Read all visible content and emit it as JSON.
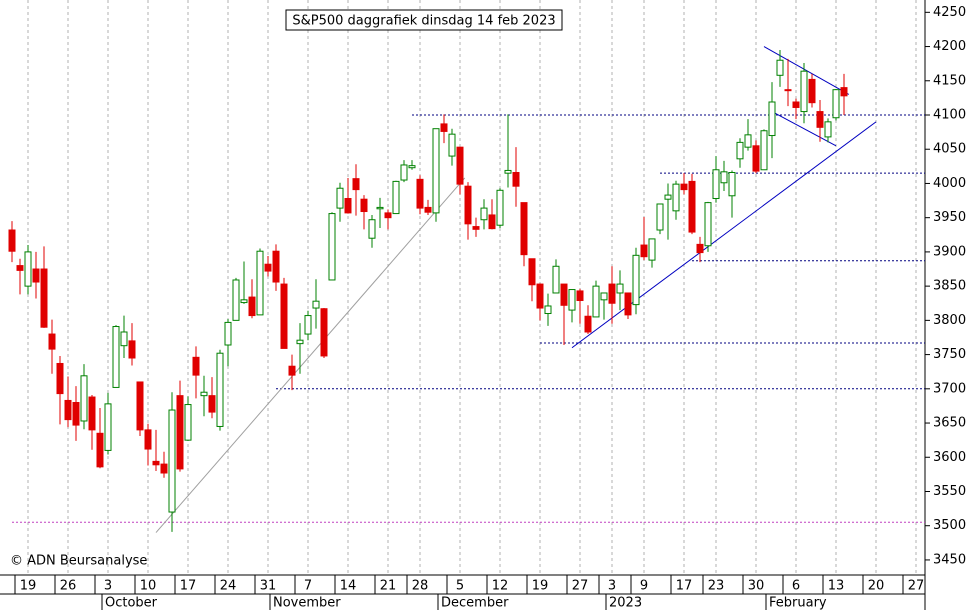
{
  "chart_data": {
    "type": "candlestick",
    "title": "S&P500 daggrafiek dinsdag 14 feb 2023",
    "copyright": "© ADN Beursanalyse",
    "categories": [
      null,
      null,
      "19",
      null,
      null,
      null,
      null,
      "26",
      null,
      null,
      null,
      null,
      "3",
      null,
      null,
      null,
      null,
      "10",
      null,
      null,
      null,
      null,
      "17",
      null,
      null,
      null,
      null,
      "24",
      null,
      null,
      null,
      null,
      "31",
      null,
      null,
      null,
      null,
      "7",
      null,
      null,
      null,
      null,
      "14",
      null,
      null,
      null,
      null,
      "21",
      null,
      null,
      null,
      "28",
      null,
      null,
      null,
      null,
      "5",
      null,
      null,
      null,
      null,
      "12",
      null,
      null,
      null,
      null,
      "19",
      null,
      null,
      null,
      null,
      "27",
      null,
      null,
      null,
      "3",
      null,
      null,
      null,
      "9",
      null,
      null,
      null,
      null,
      "17",
      null,
      null,
      null,
      "23",
      null,
      null,
      null,
      null,
      "30",
      null,
      null,
      null,
      null,
      "6",
      null,
      null,
      null,
      null,
      "13",
      null,
      null,
      null,
      null,
      "20",
      null,
      null,
      null,
      null,
      "27",
      null
    ],
    "month_labels": [
      null,
      null,
      null,
      null,
      null,
      null,
      null,
      null,
      null,
      null,
      null,
      null,
      "October",
      null,
      null,
      null,
      null,
      null,
      null,
      null,
      null,
      null,
      null,
      null,
      null,
      null,
      null,
      null,
      null,
      null,
      null,
      null,
      null,
      "November",
      null,
      null,
      null,
      null,
      null,
      null,
      null,
      null,
      null,
      null,
      null,
      null,
      null,
      null,
      null,
      null,
      null,
      null,
      null,
      null,
      "December",
      null,
      null,
      null,
      null,
      null,
      null,
      null,
      null,
      null,
      null,
      null,
      null,
      null,
      null,
      null,
      null,
      null,
      null,
      null,
      null,
      "2023",
      null,
      null,
      null,
      null,
      null,
      null,
      null,
      null,
      null,
      null,
      null,
      null,
      null,
      null,
      null,
      null,
      null,
      null,
      null,
      "February",
      null,
      null,
      null,
      null,
      null,
      null,
      null,
      null,
      null,
      null,
      null,
      null,
      null,
      null,
      null,
      null,
      null,
      null,
      null
    ],
    "open": [
      3932,
      3880,
      3850,
      3875,
      3875,
      3780,
      3737,
      3683,
      3680,
      3653,
      3688,
      3635,
      3610,
      3702,
      3763,
      3770,
      3710,
      3640,
      3594,
      3590,
      3520,
      3690,
      3625,
      3746,
      3690,
      3690,
      3645,
      3764,
      3800,
      3826,
      3834,
      3808,
      3882,
      3901,
      3853,
      3733,
      3766,
      3780,
      3818,
      3817,
      3859,
      3964,
      3978,
      4007,
      3977,
      3920,
      3963,
      3957,
      3956,
      4005,
      4023,
      4006,
      3965,
      3957,
      4087,
      4040,
      4053,
      3996,
      3937,
      3947,
      3954,
      3939,
      4015,
      4016,
      3972,
      3890,
      3853,
      3810,
      3840,
      3853,
      3815,
      3843,
      3806,
      3805,
      3830,
      3853,
      3840,
      3840,
      3823,
      3910,
      3888,
      3932,
      3977,
      3960,
      3999,
      4003,
      3911,
      3909,
      3978,
      4001,
      3982,
      4036,
      4053,
      4055,
      4020,
      4070,
      4158,
      4137,
      4119,
      4105,
      4152,
      4105,
      4068,
      4096,
      4140,
      null,
      null,
      null,
      null,
      null,
      null,
      null,
      null,
      null,
      null
    ],
    "high": [
      3945,
      3890,
      3910,
      3900,
      3908,
      3801,
      3748,
      3718,
      3704,
      3736,
      3691,
      3672,
      3694,
      3793,
      3807,
      3796,
      3710,
      3649,
      3640,
      3608,
      3695,
      3712,
      3689,
      3762,
      3719,
      3717,
      3757,
      3802,
      3862,
      3886,
      3860,
      3905,
      3894,
      3911,
      3862,
      3750,
      3796,
      3814,
      3860,
      3818,
      3958,
      4001,
      4008,
      4028,
      3983,
      3954,
      3979,
      3962,
      4004,
      4034,
      4034,
      4012,
      3976,
      4080,
      4101,
      4080,
      4053,
      4002,
      3950,
      3977,
      3977,
      3993,
      4101,
      4053,
      3972,
      3890,
      3854,
      3839,
      3889,
      3853,
      3845,
      3846,
      3822,
      3858,
      3840,
      3879,
      3873,
      3840,
      3906,
      3951,
      3919,
      3970,
      4000,
      4004,
      4015,
      4014,
      3922,
      3973,
      4040,
      4033,
      4019,
      4066,
      4094,
      4063,
      4079,
      4148,
      4195,
      4182,
      4124,
      4176,
      4160,
      4122,
      4095,
      4138,
      4160,
      null,
      null,
      null,
      null,
      null,
      null,
      null,
      null,
      null,
      null
    ],
    "low": [
      3885,
      3838,
      3838,
      3832,
      3789,
      3722,
      3648,
      3644,
      3624,
      3641,
      3611,
      3584,
      3604,
      3702,
      3745,
      3734,
      3631,
      3588,
      3580,
      3570,
      3491,
      3579,
      3624,
      3686,
      3660,
      3657,
      3639,
      3733,
      3800,
      3824,
      3803,
      3808,
      3864,
      3843,
      3759,
      3698,
      3722,
      3771,
      3788,
      3745,
      3859,
      3944,
      3956,
      3953,
      3933,
      3906,
      3935,
      3933,
      3956,
      4002,
      4020,
      3955,
      3954,
      3944,
      4059,
      4026,
      3984,
      3918,
      3922,
      3933,
      3933,
      3935,
      3994,
      3966,
      3879,
      3828,
      3800,
      3792,
      3840,
      3764,
      3797,
      3795,
      3780,
      3805,
      3801,
      3795,
      3815,
      3802,
      3809,
      3888,
      3877,
      3926,
      3918,
      3947,
      3984,
      3926,
      3885,
      3900,
      3972,
      3989,
      3950,
      4023,
      4048,
      4015,
      4020,
      4037,
      4141,
      4113,
      4094,
      4088,
      4111,
      4061,
      4060,
      4092,
      4100,
      null,
      null,
      null,
      null,
      null,
      null,
      null,
      null,
      null,
      null
    ],
    "close": [
      3901,
      3873,
      3900,
      3856,
      3790,
      3758,
      3693,
      3655,
      3647,
      3719,
      3640,
      3586,
      3678,
      3791,
      3783,
      3745,
      3640,
      3612,
      3589,
      3577,
      3669,
      3583,
      3677,
      3720,
      3695,
      3666,
      3752,
      3797,
      3859,
      3830,
      3807,
      3901,
      3872,
      3856,
      3759,
      3720,
      3771,
      3807,
      3828,
      3748,
      3956,
      3993,
      3957,
      3991,
      3959,
      3947,
      3965,
      3950,
      4003,
      4027,
      4026,
      3964,
      3958,
      4080,
      4076,
      4072,
      3999,
      3941,
      3933,
      3964,
      3934,
      3990,
      4019,
      3996,
      3896,
      3852,
      3818,
      3821,
      3879,
      3822,
      3845,
      3829,
      3783,
      3850,
      3840,
      3825,
      3853,
      3808,
      3895,
      3893,
      3919,
      3970,
      3983,
      3999,
      3991,
      3929,
      3899,
      3972,
      4020,
      4017,
      4016,
      4060,
      4071,
      4018,
      4077,
      4119,
      4180,
      4136,
      4111,
      4164,
      4118,
      4082,
      4090,
      4137,
      4128,
      null,
      null,
      null,
      null,
      null,
      null,
      null,
      null,
      null,
      null
    ],
    "up_color": "#008000",
    "down_color": "#e00000",
    "ylim": [
      3428,
      4268
    ],
    "yticks": [
      3450,
      3500,
      3550,
      3600,
      3650,
      3700,
      3750,
      3800,
      3850,
      3900,
      3950,
      4000,
      4050,
      4100,
      4150,
      4200,
      4250
    ],
    "levels": [
      {
        "value": 4100,
        "from": 50,
        "color": "#000080"
      },
      {
        "value": 4015,
        "from": 81,
        "color": "#000080"
      },
      {
        "value": 3887,
        "from": 85,
        "color": "#000080"
      },
      {
        "value": 3767,
        "from": 66,
        "color": "#000080"
      },
      {
        "value": 3700,
        "from": 33,
        "color": "#000080"
      },
      {
        "value": 3505,
        "from": 0,
        "color": "#c040c0"
      }
    ],
    "trendlines": [
      {
        "from": [
          18,
          3490
        ],
        "to": [
          56.6,
          4008
        ],
        "color": "#a0a0a0"
      },
      {
        "from": [
          70,
          3760
        ],
        "to": [
          108,
          4090
        ],
        "color": "#0000c0"
      },
      {
        "from": [
          94,
          4200
        ],
        "to": [
          104.6,
          4130
        ],
        "color": "#0000c0"
      },
      {
        "from": [
          95,
          4105
        ],
        "to": [
          103,
          4055
        ],
        "color": "#0000c0"
      }
    ]
  }
}
